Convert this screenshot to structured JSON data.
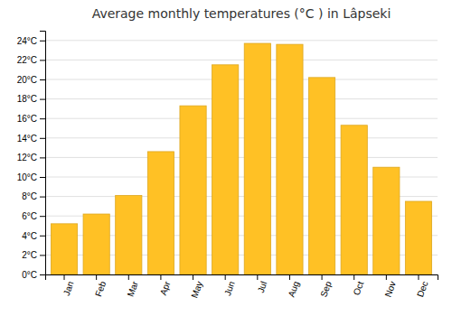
{
  "chart_data": {
    "type": "bar",
    "title": "Average monthly temperatures (°C ) in Lâpseki",
    "categories": [
      "Jan",
      "Feb",
      "Mar",
      "Apr",
      "May",
      "Jun",
      "Jul",
      "Aug",
      "Sep",
      "Oct",
      "Nov",
      "Dec"
    ],
    "values": [
      5.2,
      6.2,
      8.1,
      12.6,
      17.3,
      21.5,
      23.7,
      23.6,
      20.2,
      15.3,
      11.0,
      7.5
    ],
    "color": "#FFC125",
    "ylim": [
      0,
      25
    ],
    "yticks": [
      {
        "value": 0,
        "label": "0°C"
      },
      {
        "value": 2,
        "label": "2°C"
      },
      {
        "value": 4,
        "label": "4°C"
      },
      {
        "value": 6,
        "label": "6°C"
      },
      {
        "value": 8,
        "label": "8°C"
      },
      {
        "value": 10,
        "label": "10°C"
      },
      {
        "value": 12,
        "label": "12°C"
      },
      {
        "value": 14,
        "label": "14°C"
      },
      {
        "value": 16,
        "label": "16°C"
      },
      {
        "value": 18,
        "label": "18°C"
      },
      {
        "value": 20,
        "label": "20°C"
      },
      {
        "value": 22,
        "label": "22°C"
      },
      {
        "value": 24,
        "label": "24°C"
      }
    ],
    "grid": true
  }
}
